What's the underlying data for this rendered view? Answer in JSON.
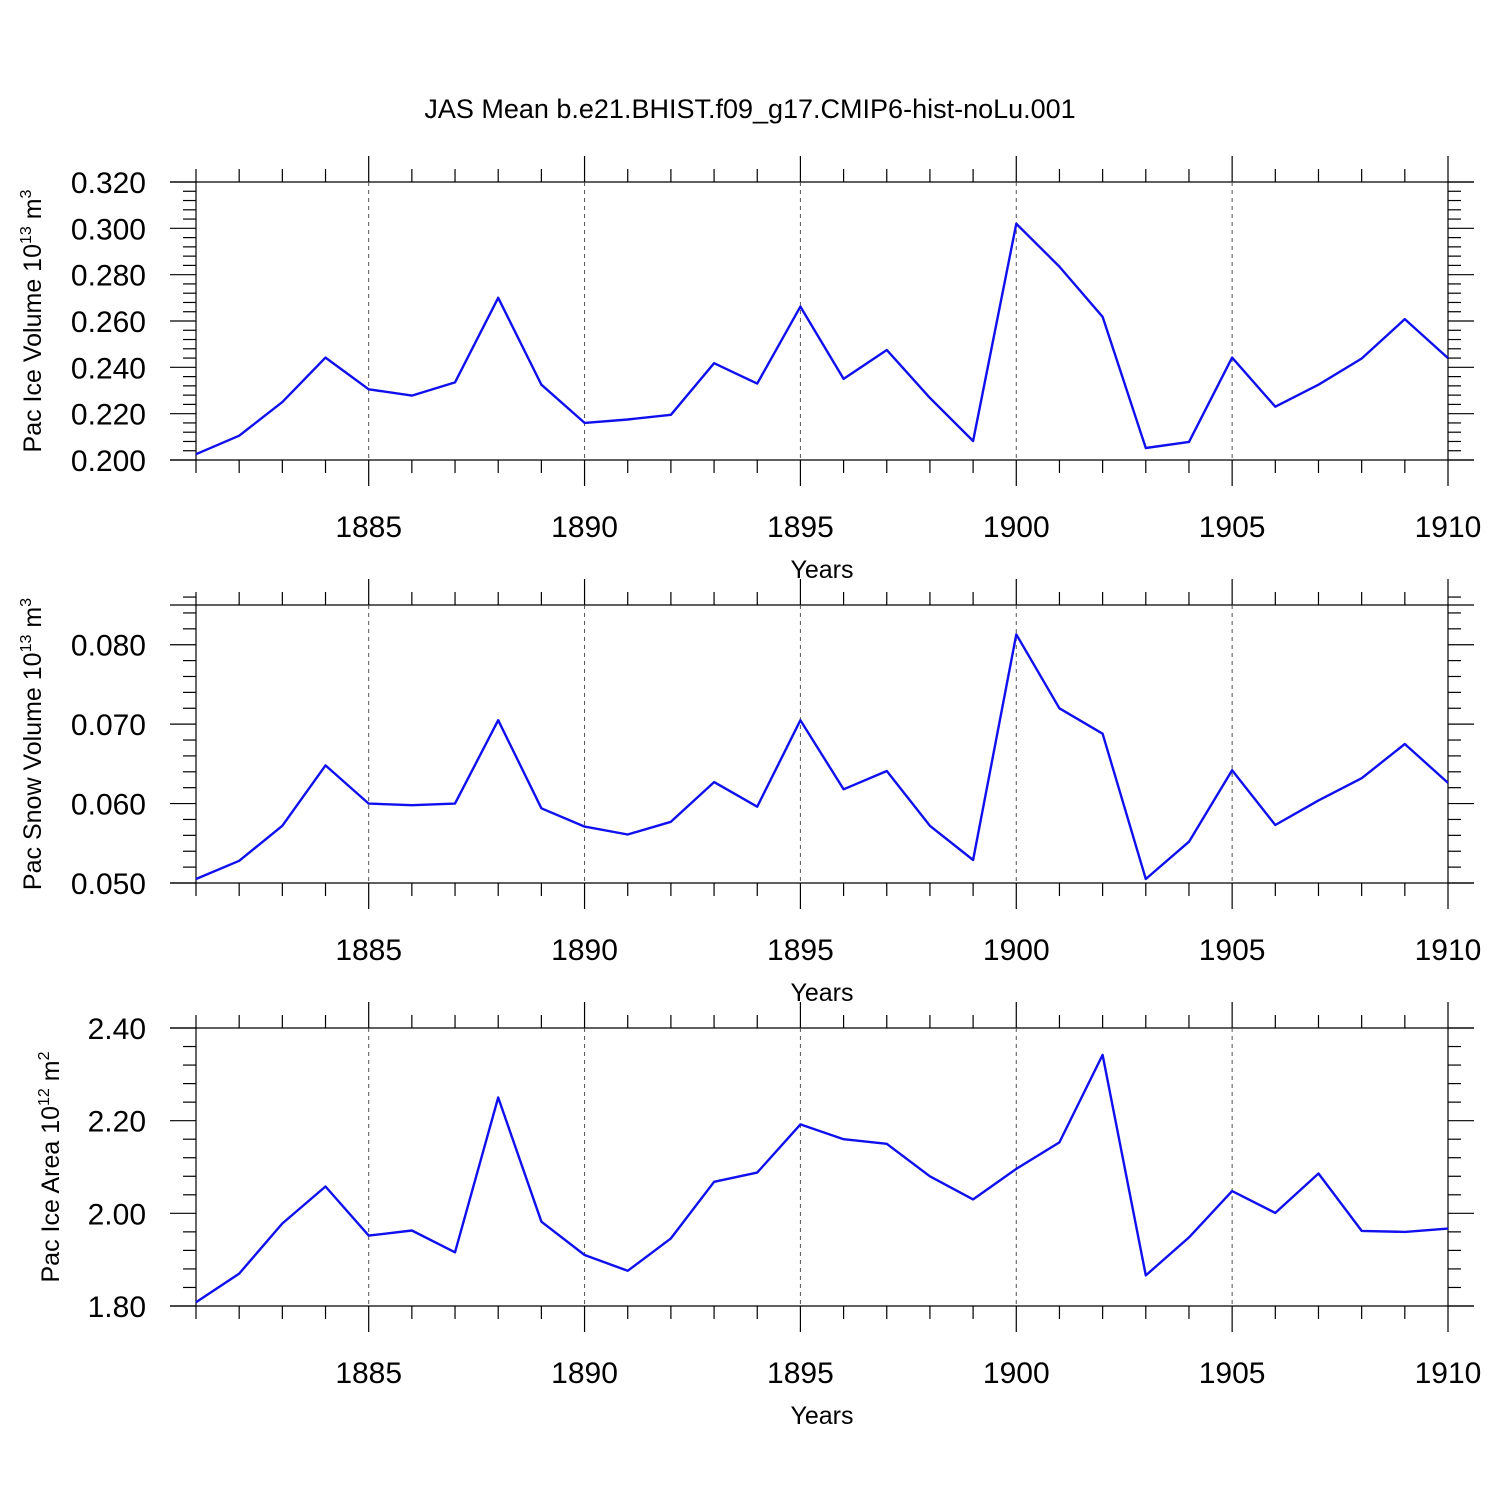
{
  "title": "JAS Mean b.e21.BHIST.f09_g17.CMIP6-hist-noLu.001",
  "colors": {
    "series": "#1010ee"
  },
  "chart_data": [
    {
      "type": "line",
      "ylabel": "Pac Ice Volume 10",
      "ylabel_exp": "13",
      "ylabel_unit": "m",
      "ylabel_unit_exp": "3",
      "xlabel": "Years",
      "xlim": [
        1881,
        1910
      ],
      "ylim": [
        0.2,
        0.32
      ],
      "ymajor": [
        0.2,
        0.22,
        0.24,
        0.26,
        0.28,
        0.3,
        0.32
      ],
      "ytick_labels": [
        "0.200",
        "0.220",
        "0.240",
        "0.260",
        "0.280",
        "0.300",
        "0.320"
      ],
      "xticks": [
        1885,
        1890,
        1895,
        1900,
        1905,
        1910
      ],
      "xtick_labels": [
        "1885",
        "1890",
        "1895",
        "1900",
        "1905",
        "1910"
      ],
      "grid": "vertical dashed at major x ticks",
      "x": [
        1881,
        1882,
        1883,
        1884,
        1885,
        1886,
        1887,
        1888,
        1889,
        1890,
        1891,
        1892,
        1893,
        1894,
        1895,
        1896,
        1897,
        1898,
        1899,
        1900,
        1901,
        1902,
        1903,
        1904,
        1905,
        1906,
        1907,
        1908,
        1909,
        1910
      ],
      "y": [
        0.2025,
        0.2105,
        0.225,
        0.2442,
        0.2305,
        0.2278,
        0.2335,
        0.27,
        0.2325,
        0.216,
        0.2175,
        0.2195,
        0.2418,
        0.233,
        0.2662,
        0.235,
        0.2475,
        0.2268,
        0.2082,
        0.302,
        0.2835,
        0.2618,
        0.2052,
        0.2078,
        0.2442,
        0.223,
        0.2325,
        0.2438,
        0.2608,
        0.244
      ]
    },
    {
      "type": "line",
      "ylabel": "Pac Snow Volume 10",
      "ylabel_exp": "13",
      "ylabel_unit": "m",
      "ylabel_unit_exp": "3",
      "xlabel": "Years",
      "xlim": [
        1881,
        1910
      ],
      "ylim": [
        0.05,
        0.085
      ],
      "ymajor": [
        0.05,
        0.06,
        0.07,
        0.08
      ],
      "ytick_labels": [
        "0.050",
        "0.060",
        "0.070",
        "0.080"
      ],
      "xticks": [
        1885,
        1890,
        1895,
        1900,
        1905,
        1910
      ],
      "xtick_labels": [
        "1885",
        "1890",
        "1895",
        "1900",
        "1905",
        "1910"
      ],
      "grid": "vertical dashed at major x ticks",
      "x": [
        1881,
        1882,
        1883,
        1884,
        1885,
        1886,
        1887,
        1888,
        1889,
        1890,
        1891,
        1892,
        1893,
        1894,
        1895,
        1896,
        1897,
        1898,
        1899,
        1900,
        1901,
        1902,
        1903,
        1904,
        1905,
        1906,
        1907,
        1908,
        1909,
        1910
      ],
      "y": [
        0.0505,
        0.0528,
        0.0572,
        0.0648,
        0.06,
        0.0598,
        0.06,
        0.0705,
        0.0594,
        0.0571,
        0.0561,
        0.0577,
        0.0627,
        0.0596,
        0.0705,
        0.0618,
        0.0641,
        0.0572,
        0.0529,
        0.0813,
        0.072,
        0.0688,
        0.0505,
        0.0552,
        0.0642,
        0.0573,
        0.0604,
        0.0632,
        0.0675,
        0.0626
      ]
    },
    {
      "type": "line",
      "ylabel": "Pac Ice Area 10",
      "ylabel_exp": "12",
      "ylabel_unit": "m",
      "ylabel_unit_exp": "2",
      "xlabel": "Years",
      "xlim": [
        1881,
        1910
      ],
      "ylim": [
        1.8,
        2.4
      ],
      "ymajor": [
        1.8,
        2.0,
        2.2,
        2.4
      ],
      "ytick_labels": [
        "1.80",
        "2.00",
        "2.20",
        "2.40"
      ],
      "xticks": [
        1885,
        1890,
        1895,
        1900,
        1905,
        1910
      ],
      "xtick_labels": [
        "1885",
        "1890",
        "1895",
        "1900",
        "1905",
        "1910"
      ],
      "grid": "vertical dashed at major x ticks",
      "x": [
        1881,
        1882,
        1883,
        1884,
        1885,
        1886,
        1887,
        1888,
        1889,
        1890,
        1891,
        1892,
        1893,
        1894,
        1895,
        1896,
        1897,
        1898,
        1899,
        1900,
        1901,
        1902,
        1903,
        1904,
        1905,
        1906,
        1907,
        1908,
        1909,
        1910
      ],
      "y": [
        1.808,
        1.87,
        1.978,
        2.058,
        1.952,
        1.963,
        1.916,
        2.25,
        1.982,
        1.91,
        1.876,
        1.946,
        2.068,
        2.088,
        2.192,
        2.16,
        2.15,
        2.08,
        2.03,
        2.096,
        2.153,
        2.342,
        1.866,
        1.948,
        2.048,
        2.001,
        2.086,
        1.962,
        1.96,
        1.967
      ]
    }
  ]
}
